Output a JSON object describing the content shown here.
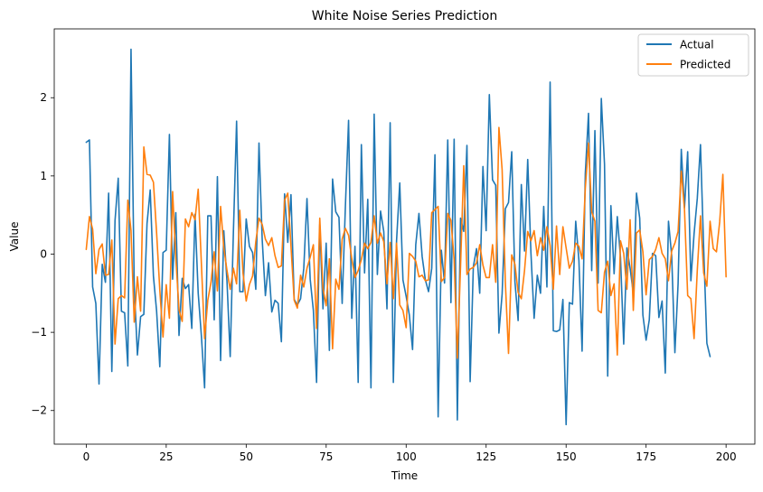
{
  "chart_data": {
    "type": "line",
    "title": "White Noise Series Prediction",
    "xlabel": "Time",
    "ylabel": "Value",
    "xlim": [
      -10,
      209
    ],
    "ylim": [
      -2.43,
      2.88
    ],
    "xticks": [
      0,
      25,
      50,
      75,
      100,
      125,
      150,
      175,
      200
    ],
    "yticks": [
      -2,
      -1,
      0,
      1,
      2
    ],
    "legend_position": "top-right",
    "grid": false,
    "series": [
      {
        "name": "Actual",
        "color": "#1f77b4",
        "values": [
          1.43,
          1.46,
          -0.42,
          -0.63,
          -1.66,
          -0.13,
          -0.36,
          0.78,
          -1.5,
          0.43,
          0.97,
          -0.73,
          -0.75,
          -1.43,
          2.62,
          -0.4,
          -1.29,
          -0.8,
          -0.77,
          0.39,
          0.82,
          -0.28,
          -0.73,
          -1.44,
          0.02,
          0.05,
          1.53,
          -0.32,
          0.53,
          -1.04,
          -0.31,
          -0.44,
          -0.39,
          -0.95,
          0.51,
          -0.5,
          -1.05,
          -1.71,
          0.49,
          0.49,
          -0.84,
          0.99,
          -1.36,
          0.3,
          -0.35,
          -1.31,
          0.28,
          1.7,
          -0.48,
          -0.48,
          0.45,
          0.1,
          0.02,
          -0.45,
          1.42,
          0.19,
          -0.53,
          -0.11,
          -0.74,
          -0.59,
          -0.63,
          -1.12,
          0.77,
          0.15,
          0.76,
          -0.58,
          -0.65,
          -0.57,
          -0.18,
          0.71,
          -0.32,
          -0.72,
          -1.64,
          0.38,
          -0.7,
          0.14,
          -1.23,
          0.96,
          0.54,
          0.47,
          -0.63,
          0.6,
          1.71,
          -0.82,
          0.1,
          -1.64,
          1.4,
          -0.24,
          0.7,
          -1.71,
          1.79,
          -0.26,
          0.55,
          0.29,
          -0.7,
          1.68,
          -1.64,
          0.17,
          0.91,
          -0.33,
          -0.54,
          -0.78,
          -1.22,
          0.12,
          0.52,
          -0.03,
          -0.33,
          -0.48,
          -0.18,
          1.27,
          -2.08,
          0.05,
          -0.37,
          1.46,
          -0.62,
          1.47,
          -2.12,
          0.46,
          0.29,
          1.39,
          -1.63,
          -0.16,
          0.07,
          -0.5,
          1.12,
          0.3,
          2.04,
          0.95,
          0.88,
          -1.01,
          -0.51,
          0.58,
          0.66,
          1.31,
          -0.35,
          -0.85,
          0.89,
          0.04,
          1.21,
          0.02,
          -0.82,
          -0.27,
          -0.5,
          0.61,
          -0.42,
          2.2,
          -0.98,
          -0.99,
          -0.97,
          -0.58,
          -2.18,
          -0.62,
          -0.64,
          0.42,
          -0.08,
          -1.24,
          1.03,
          1.8,
          -0.21,
          1.58,
          -0.37,
          1.99,
          1.15,
          -1.56,
          0.62,
          -0.25,
          0.48,
          -0.04,
          -1.15,
          0.08,
          -0.18,
          -0.5,
          0.78,
          0.46,
          -0.78,
          -1.1,
          -0.84,
          0.01,
          -0.02,
          -0.81,
          -0.6,
          -1.52,
          0.42,
          -0.02,
          -1.26,
          -0.38,
          1.34,
          0.59,
          1.31,
          -0.34,
          0.26,
          0.71,
          1.4,
          0.07,
          -1.14,
          -1.31
        ]
      },
      {
        "name": "Predicted",
        "color": "#ff7f0e",
        "values": [
          0.06,
          0.48,
          0.32,
          -0.25,
          0.06,
          0.13,
          -0.27,
          -0.26,
          0.18,
          -1.15,
          -0.57,
          -0.53,
          -0.56,
          0.69,
          0.3,
          -0.87,
          -0.29,
          -0.73,
          1.37,
          1.02,
          1.01,
          0.92,
          0.27,
          -0.46,
          -1.06,
          -0.39,
          -0.82,
          0.8,
          -0.05,
          -0.71,
          -0.86,
          0.45,
          0.35,
          0.53,
          0.44,
          0.83,
          -0.13,
          -1.08,
          -0.59,
          -0.36,
          0.03,
          -0.47,
          0.61,
          0.08,
          -0.21,
          -0.45,
          -0.18,
          -0.38,
          0.56,
          -0.24,
          -0.6,
          -0.39,
          -0.28,
          0.16,
          0.46,
          0.38,
          0.19,
          0.11,
          0.21,
          -0.02,
          -0.17,
          -0.15,
          0.69,
          0.78,
          0.1,
          -0.59,
          -0.69,
          -0.27,
          -0.42,
          -0.18,
          -0.04,
          0.12,
          -0.95,
          0.46,
          -0.44,
          -0.66,
          -0.06,
          -1.21,
          -0.32,
          -0.45,
          0.19,
          0.33,
          0.24,
          -0.06,
          -0.3,
          -0.21,
          -0.07,
          0.14,
          0.07,
          0.15,
          0.49,
          0.14,
          0.27,
          0.16,
          -0.38,
          0.15,
          -0.57,
          0.14,
          -0.65,
          -0.72,
          -0.94,
          0.01,
          -0.03,
          -0.09,
          -0.29,
          -0.27,
          -0.34,
          -0.33,
          0.53,
          0.57,
          0.61,
          -0.35,
          -0.3,
          0.52,
          0.43,
          -0.07,
          -1.33,
          -0.16,
          1.13,
          -0.26,
          -0.19,
          -0.17,
          -0.11,
          0.12,
          -0.14,
          -0.3,
          -0.3,
          0.12,
          -0.36,
          1.62,
          1.08,
          -0.35,
          -1.27,
          -0.01,
          -0.13,
          -0.49,
          -0.57,
          -0.21,
          0.29,
          0.17,
          0.3,
          -0.02,
          0.21,
          0.05,
          0.35,
          0.11,
          -0.45,
          0.36,
          -0.26,
          0.35,
          0.08,
          -0.18,
          -0.09,
          0.14,
          0.1,
          -0.06,
          0.84,
          1.42,
          0.54,
          0.42,
          -0.72,
          -0.75,
          -0.23,
          -0.09,
          -0.53,
          -0.38,
          -1.29,
          0.17,
          0.01,
          -0.45,
          0.44,
          -0.72,
          0.27,
          0.31,
          0.03,
          -0.52,
          -0.07,
          -0.03,
          0.06,
          0.21,
          0.01,
          -0.06,
          -0.34,
          0.04,
          0.14,
          0.29,
          1.06,
          0.57,
          -0.53,
          -0.57,
          -1.08,
          -0.21,
          0.49,
          -0.24,
          -0.41,
          0.42,
          0.07,
          0.03,
          0.41,
          1.02,
          -0.29
        ]
      }
    ]
  }
}
